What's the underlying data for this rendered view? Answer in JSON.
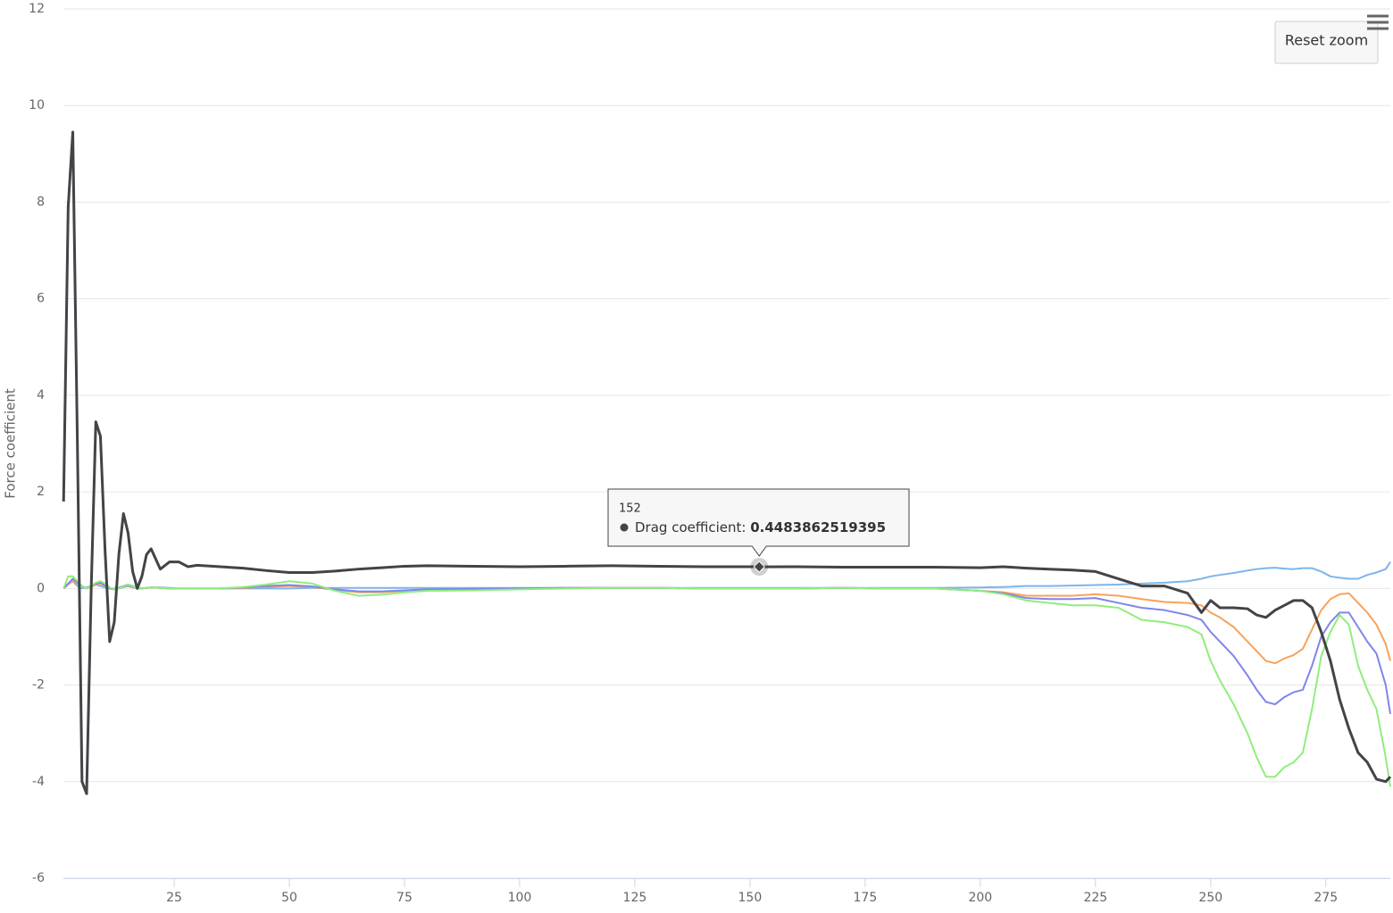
{
  "chart_data": {
    "type": "line",
    "y_axis_label": "Force coefficient",
    "button": "Reset zoom",
    "x": [
      1,
      2,
      3,
      4,
      5,
      6,
      7,
      8,
      9,
      10,
      11,
      12,
      13,
      14,
      15,
      16,
      17,
      18,
      19,
      20,
      22,
      24,
      26,
      28,
      30,
      35,
      40,
      45,
      50,
      55,
      60,
      65,
      70,
      75,
      80,
      90,
      100,
      110,
      120,
      130,
      140,
      150,
      152,
      160,
      170,
      180,
      190,
      200,
      205,
      210,
      215,
      220,
      225,
      230,
      235,
      240,
      245,
      248,
      250,
      252,
      255,
      258,
      260,
      262,
      264,
      266,
      268,
      270,
      272,
      274,
      276,
      278,
      280,
      282,
      284,
      286,
      288,
      289
    ],
    "series": [
      {
        "name": "Drag coefficient",
        "color": "#434348",
        "values": [
          1.8,
          7.9,
          9.45,
          3,
          -4.0,
          -4.25,
          0,
          3.45,
          3.15,
          0.8,
          -1.1,
          -0.7,
          0.7,
          1.55,
          1.15,
          0.35,
          0,
          0.25,
          0.7,
          0.82,
          0.4,
          0.55,
          0.55,
          0.45,
          0.48,
          0.45,
          0.42,
          0.37,
          0.33,
          0.33,
          0.36,
          0.4,
          0.43,
          0.46,
          0.47,
          0.46,
          0.45,
          0.46,
          0.47,
          0.46,
          0.45,
          0.45,
          0.4483862519395,
          0.45,
          0.44,
          0.44,
          0.44,
          0.43,
          0.45,
          0.42,
          0.4,
          0.38,
          0.35,
          0.2,
          0.05,
          0.05,
          -0.1,
          -0.5,
          -0.25,
          -0.4,
          -0.4,
          -0.42,
          -0.55,
          -0.6,
          -0.45,
          -0.35,
          -0.25,
          -0.25,
          -0.4,
          -0.9,
          -1.5,
          -2.3,
          -2.9,
          -3.4,
          -3.6,
          -3.95,
          -4.0,
          -3.9
        ]
      },
      {
        "color": "#7cb5ec",
        "values": [
          0,
          0.1,
          0.15,
          0.05,
          0,
          0.02,
          0.05,
          0.08,
          0.05,
          0.02,
          0,
          0,
          0.02,
          0.05,
          0.08,
          0.05,
          0.02,
          0,
          0.01,
          0.02,
          0.02,
          0.01,
          0,
          0,
          0,
          0,
          0,
          0,
          0,
          0.01,
          0.01,
          0.01,
          0.01,
          0.01,
          0.01,
          0.01,
          0.01,
          0.01,
          0.01,
          0.01,
          0.01,
          0.01,
          0.01,
          0.01,
          0.01,
          0.01,
          0.01,
          0.02,
          0.03,
          0.05,
          0.05,
          0.06,
          0.07,
          0.08,
          0.1,
          0.12,
          0.15,
          0.2,
          0.25,
          0.28,
          0.32,
          0.37,
          0.4,
          0.42,
          0.43,
          0.41,
          0.4,
          0.42,
          0.42,
          0.35,
          0.25,
          0.22,
          0.2,
          0.2,
          0.28,
          0.33,
          0.4,
          0.55
        ]
      },
      {
        "color": "#f7a35c",
        "values": [
          0,
          0.08,
          0.15,
          0.1,
          0.05,
          0,
          0.03,
          0.08,
          0.1,
          0.05,
          0,
          -0.02,
          0,
          0.03,
          0.05,
          0.02,
          0,
          0,
          0.01,
          0.02,
          0.01,
          0,
          0,
          0,
          0,
          0,
          0.01,
          0.03,
          0.05,
          0.03,
          -0.03,
          -0.08,
          -0.08,
          -0.05,
          -0.03,
          -0.02,
          0,
          0.01,
          0.01,
          0.01,
          0,
          0,
          0,
          0,
          0.01,
          0,
          0,
          -0.05,
          -0.08,
          -0.15,
          -0.15,
          -0.15,
          -0.12,
          -0.15,
          -0.22,
          -0.28,
          -0.3,
          -0.35,
          -0.5,
          -0.6,
          -0.8,
          -1.1,
          -1.3,
          -1.5,
          -1.55,
          -1.45,
          -1.38,
          -1.25,
          -0.85,
          -0.45,
          -0.22,
          -0.12,
          -0.1,
          -0.3,
          -0.5,
          -0.75,
          -1.15,
          -1.5
        ]
      },
      {
        "color": "#8085e9",
        "values": [
          0,
          0.1,
          0.2,
          0.12,
          0.05,
          0,
          0.05,
          0.1,
          0.12,
          0.06,
          0,
          -0.02,
          0,
          0.03,
          0.06,
          0.03,
          0,
          0,
          0.01,
          0.02,
          0.01,
          0,
          0,
          0,
          0,
          0,
          0.02,
          0.05,
          0.07,
          0.04,
          -0.02,
          -0.06,
          -0.06,
          -0.04,
          -0.02,
          -0.01,
          0,
          0.01,
          0.01,
          0.01,
          0,
          0,
          0,
          0,
          0.01,
          0,
          0,
          -0.05,
          -0.1,
          -0.2,
          -0.22,
          -0.22,
          -0.2,
          -0.3,
          -0.4,
          -0.45,
          -0.55,
          -0.65,
          -0.9,
          -1.1,
          -1.4,
          -1.8,
          -2.1,
          -2.35,
          -2.4,
          -2.25,
          -2.15,
          -2.1,
          -1.6,
          -1.0,
          -0.7,
          -0.5,
          -0.5,
          -0.8,
          -1.1,
          -1.35,
          -2.0,
          -2.6
        ]
      },
      {
        "color": "#90ed7d",
        "values": [
          0,
          0.25,
          0.25,
          0.15,
          0.05,
          0,
          0.05,
          0.12,
          0.15,
          0.1,
          0.02,
          -0.02,
          0,
          0.04,
          0.08,
          0.04,
          0,
          0,
          0.01,
          0.02,
          0.01,
          0,
          0,
          0,
          0,
          0,
          0.03,
          0.08,
          0.15,
          0.1,
          -0.05,
          -0.15,
          -0.13,
          -0.08,
          -0.05,
          -0.04,
          -0.02,
          0,
          0.01,
          0.01,
          0,
          0,
          0,
          0,
          0.01,
          0,
          0,
          -0.05,
          -0.12,
          -0.25,
          -0.3,
          -0.35,
          -0.35,
          -0.4,
          -0.65,
          -0.7,
          -0.8,
          -0.95,
          -1.5,
          -1.9,
          -2.4,
          -3.0,
          -3.5,
          -3.9,
          -3.9,
          -3.7,
          -3.6,
          -3.4,
          -2.5,
          -1.4,
          -0.9,
          -0.55,
          -0.75,
          -1.6,
          -2.1,
          -2.5,
          -3.5,
          -4.1
        ]
      }
    ],
    "xlim": [
      1,
      289
    ],
    "xticks": [
      25,
      50,
      75,
      100,
      125,
      150,
      175,
      200,
      225,
      250,
      275
    ],
    "ylim": [
      -6,
      12
    ],
    "yticks": [
      -6,
      -4,
      -2,
      0,
      2,
      4,
      6,
      8,
      10,
      12
    ],
    "grid": true,
    "tooltip_index": 42
  }
}
